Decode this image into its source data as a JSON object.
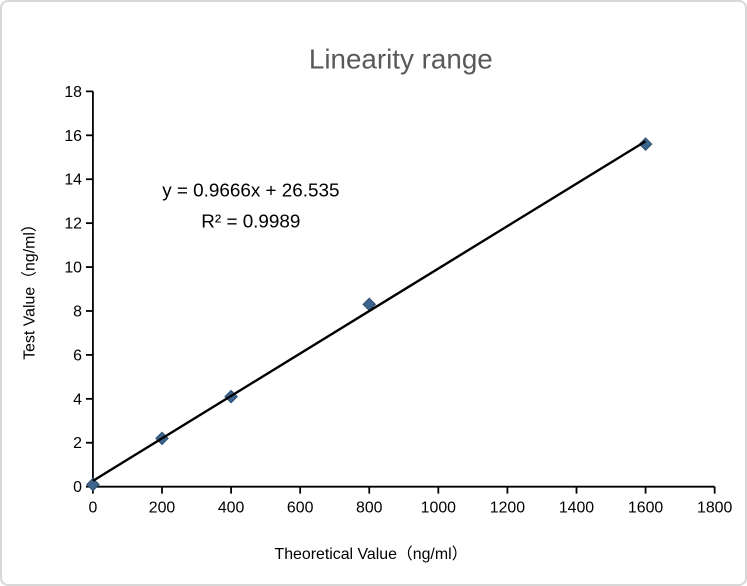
{
  "window": {
    "background": "#ffffff",
    "border_color": "#d8d8d8"
  },
  "chart_data": {
    "type": "scatter",
    "title": "Linearity range",
    "title_color": "#595959",
    "xlabel": "Theoretical Value（ng/ml）",
    "ylabel": "Test Value（ng/ml）",
    "xlim": [
      0,
      1800
    ],
    "ylim": [
      0,
      18
    ],
    "xticks": [
      0,
      200,
      400,
      600,
      800,
      1000,
      1200,
      1400,
      1600,
      1800
    ],
    "yticks": [
      0,
      2,
      4,
      6,
      8,
      10,
      12,
      14,
      16,
      18
    ],
    "grid": false,
    "legend": "none",
    "axis_color": "#000000",
    "series": [
      {
        "name": "Test Value",
        "marker": "diamond",
        "marker_fill": "#3d648f",
        "marker_stroke": "#2e4d70",
        "x": [
          0,
          200,
          400,
          800,
          1600
        ],
        "y": [
          0.1,
          2.2,
          4.1,
          8.3,
          15.6
        ]
      }
    ],
    "trendline": {
      "slope": 0.9666,
      "intercept": 26.535,
      "display_scale": 0.01,
      "x_start": 0,
      "x_end": 1600,
      "color": "#000000",
      "equation_label": "y = 0.9666x + 26.535",
      "r2_label": "R² = 0.9989"
    }
  }
}
